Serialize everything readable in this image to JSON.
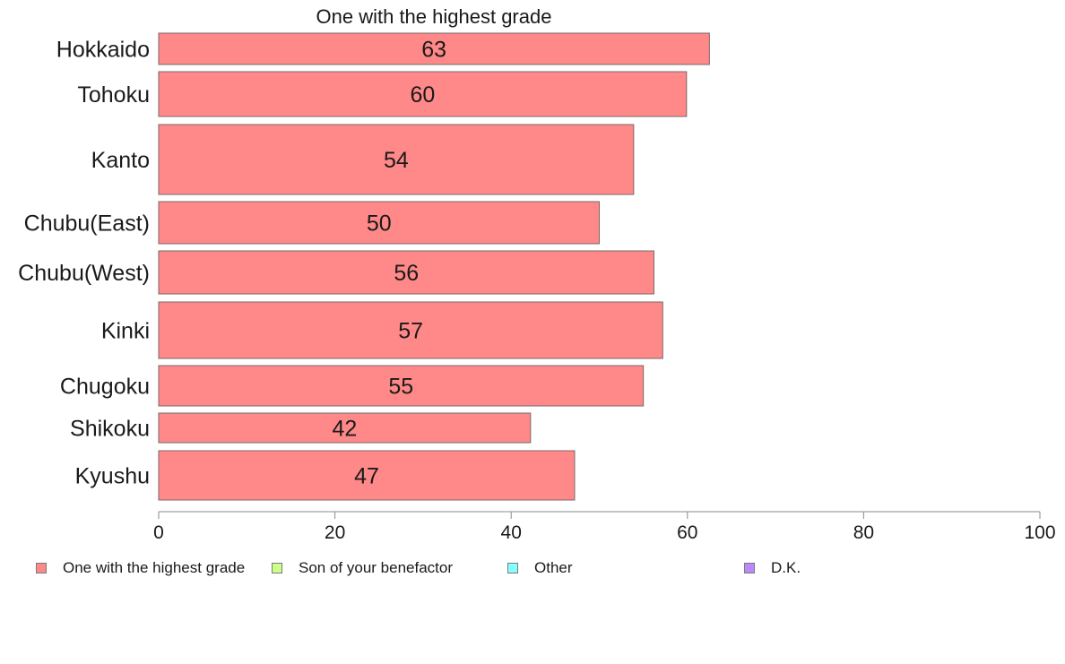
{
  "chart_data": {
    "type": "bar",
    "orientation": "horizontal",
    "title": "One with the highest grade",
    "categories": [
      "Hokkaido",
      "Tohoku",
      "Kanto",
      "Chubu(East)",
      "Chubu(West)",
      "Kinki",
      "Chugoku",
      "Shikoku",
      "Kyushu"
    ],
    "series": [
      {
        "name": "One with the highest grade",
        "color": "#ff8888",
        "values": [
          62.5,
          59.9,
          53.9,
          50.0,
          56.2,
          57.2,
          55.0,
          42.2,
          47.2
        ],
        "labels": [
          "63",
          "60",
          "54",
          "50",
          "56",
          "57",
          "55",
          "42",
          "47"
        ]
      }
    ],
    "xlim": [
      0,
      100
    ],
    "xticks": [
      0,
      20,
      40,
      60,
      80,
      100
    ],
    "xtick_labels": [
      "0",
      "20",
      "40",
      "60",
      "80",
      "100"
    ],
    "grid": false,
    "bar_widths": "variable",
    "legend": {
      "placement": "bottom",
      "entries": [
        {
          "label": "One with the highest grade",
          "color": "#ff8888"
        },
        {
          "label": "Son of your benefactor",
          "color": "#ccff88"
        },
        {
          "label": "Other",
          "color": "#88ffff"
        },
        {
          "label": "D.K.",
          "color": "#bb88ff"
        }
      ]
    }
  }
}
